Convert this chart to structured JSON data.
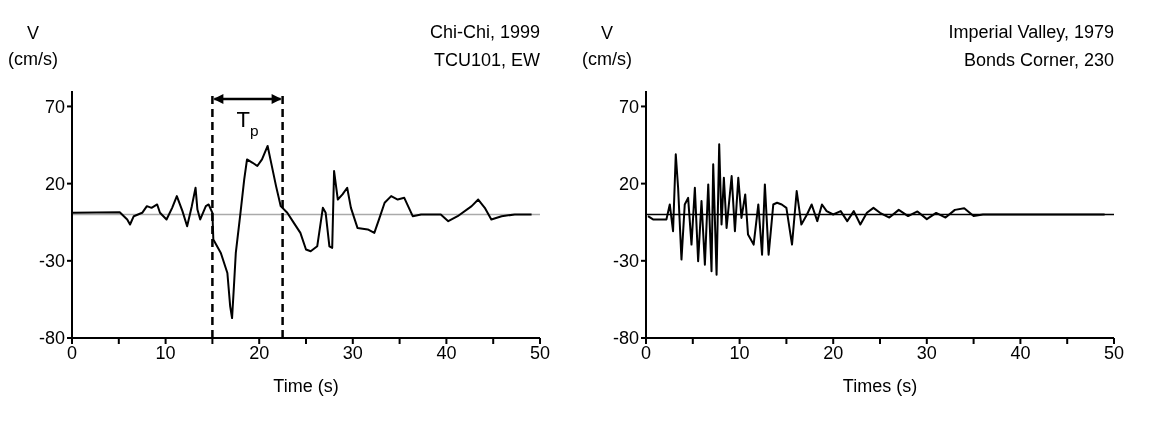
{
  "chart_data": [
    {
      "type": "line",
      "title": "Chi-Chi, 1999",
      "subtitle": "TCU101, EW",
      "xlabel": "Time (s)",
      "ylabel": "V (cm/s)",
      "annotations": [
        "T$_{p}$"
      ],
      "xlim": [
        0,
        50
      ],
      "xticks": [
        0,
        {
          "value": 5,
          "label": null
        },
        10,
        {
          "value": 15,
          "label": null
        },
        20,
        {
          "value": 25,
          "label": null
        },
        30,
        {
          "value": 35,
          "label": null
        },
        40,
        {
          "value": 45,
          "label": null
        },
        50
      ],
      "ylim": [
        -80,
        80
      ],
      "yticks": [
        -80,
        -30,
        20,
        70
      ],
      "marker": "none",
      "line_style": "solid",
      "ref_lines": [
        {
          "axis": "y",
          "value": 0,
          "color": "#aaaaaa",
          "line_style": "solid"
        },
        {
          "axis": "x",
          "value": 15,
          "color": "#000000",
          "line_style": "dashed"
        },
        {
          "axis": "x",
          "value": 22.5,
          "color": "#000000",
          "line_style": "dashed"
        }
      ],
      "series": [
        {
          "color": "#000000",
          "x": [
            0.1,
            5.1,
            5.9,
            6.2,
            6.6,
            7.5,
            8.0,
            8.5,
            9.1,
            9.4,
            10.1,
            10.7,
            11.2,
            11.8,
            12.3,
            12.8,
            13.2,
            13.4,
            13.7,
            14.3,
            14.6,
            15.0,
            15.1,
            15.9,
            16.6,
            16.9,
            17.1,
            17.3,
            17.5,
            18.0,
            18.4,
            18.7,
            19.3,
            19.8,
            20.3,
            20.9,
            21.2,
            21.8,
            22.3,
            23.0,
            23.7,
            24.4,
            25.0,
            25.5,
            26.2,
            26.8,
            27.1,
            27.5,
            27.8,
            28.0,
            28.4,
            28.9,
            29.4,
            29.8,
            30.5,
            31.6,
            32.3,
            32.8,
            33.4,
            34.1,
            34.8,
            35.5,
            36.4,
            37.3,
            39.4,
            40.2,
            41.2,
            42.7,
            43.4,
            44.1,
            44.8,
            45.9,
            47.3,
            49.1
          ],
          "values": [
            1.1,
            1.5,
            -3.2,
            -6.5,
            -1.1,
            1.1,
            5.4,
            4.3,
            6.5,
            1.1,
            -3.2,
            4.3,
            11.9,
            2.2,
            -7.6,
            5.4,
            17.3,
            3.2,
            -3.2,
            5.4,
            6.5,
            1.1,
            -16.2,
            -24.9,
            -37.9,
            -59.5,
            -67.1,
            -46.5,
            -24.9,
            1.1,
            22.7,
            35.7,
            33.5,
            31.4,
            35.7,
            44.4,
            35.7,
            18.4,
            5.4,
            1.1,
            -5.4,
            -11.9,
            -22.7,
            -23.8,
            -20.6,
            4.3,
            1.1,
            -20.6,
            -21.6,
            28.1,
            9.7,
            13.0,
            17.3,
            4.3,
            -8.7,
            -9.7,
            -11.9,
            -3.2,
            7.6,
            11.9,
            9.7,
            10.8,
            -1.1,
            0,
            0,
            -4.3,
            -1.1,
            5.4,
            9.7,
            4.3,
            -3.2,
            -1.1,
            0,
            0
          ]
        }
      ]
    },
    {
      "type": "line",
      "title": "Imperial Valley, 1979",
      "subtitle": "Bonds Corner, 230",
      "xlabel": "Times (s)",
      "ylabel": "V (cm/s)",
      "xlim": [
        0,
        50
      ],
      "xticks": [
        0,
        {
          "value": 5,
          "label": null
        },
        10,
        {
          "value": 15,
          "label": null
        },
        20,
        {
          "value": 25,
          "label": null
        },
        30,
        {
          "value": 35,
          "label": null
        },
        40,
        {
          "value": 45,
          "label": null
        },
        50
      ],
      "ylim": [
        -80,
        80
      ],
      "yticks": [
        -80,
        -30,
        20,
        70
      ],
      "marker": "none",
      "line_style": "solid",
      "ref_lines": [
        {
          "axis": "y",
          "value": 0,
          "color": "#000000",
          "line_style": "solid"
        }
      ],
      "series": [
        {
          "color": "#000000",
          "x": [
            0.21,
            0.75,
            2.18,
            2.54,
            2.89,
            3.18,
            3.43,
            3.79,
            4.14,
            4.5,
            4.86,
            5.22,
            5.57,
            5.93,
            6.29,
            6.65,
            7.0,
            7.18,
            7.54,
            7.82,
            8.07,
            8.32,
            8.61,
            9.15,
            9.5,
            9.86,
            10.2,
            10.6,
            10.9,
            11.5,
            12.0,
            12.4,
            12.7,
            13.1,
            13.4,
            13.6,
            14.0,
            14.5,
            15.0,
            15.6,
            16.1,
            16.6,
            17.2,
            17.7,
            18.3,
            18.8,
            19.3,
            20.0,
            20.8,
            21.5,
            22.2,
            22.9,
            23.6,
            24.3,
            25.0,
            26,
            27,
            28,
            29,
            30,
            31,
            32,
            33,
            34,
            35,
            36,
            40,
            49
          ],
          "values": [
            -1.1,
            -3.2,
            -3.2,
            6.5,
            -10.8,
            39.0,
            17.3,
            -29.2,
            6.5,
            10.8,
            -19.5,
            17.3,
            -30.3,
            8.7,
            -32.5,
            19.5,
            -36.8,
            32.5,
            -39.0,
            45.5,
            -6.5,
            23.8,
            -8.7,
            24.9,
            -10.8,
            23.8,
            -2.2,
            13.0,
            -13.0,
            -19.5,
            6.5,
            -26.0,
            19.5,
            -26.0,
            -6.5,
            6.5,
            7.6,
            6.5,
            4.3,
            -19.5,
            15.2,
            -6.5,
            0,
            6.5,
            -4.3,
            6.5,
            2.2,
            0,
            2.2,
            -4.3,
            2.2,
            -6.5,
            1.1,
            4.3,
            1.1,
            -2,
            3,
            -1,
            2,
            -3,
            1,
            -2,
            3,
            4,
            -1,
            0,
            0,
            0
          ]
        }
      ]
    }
  ]
}
